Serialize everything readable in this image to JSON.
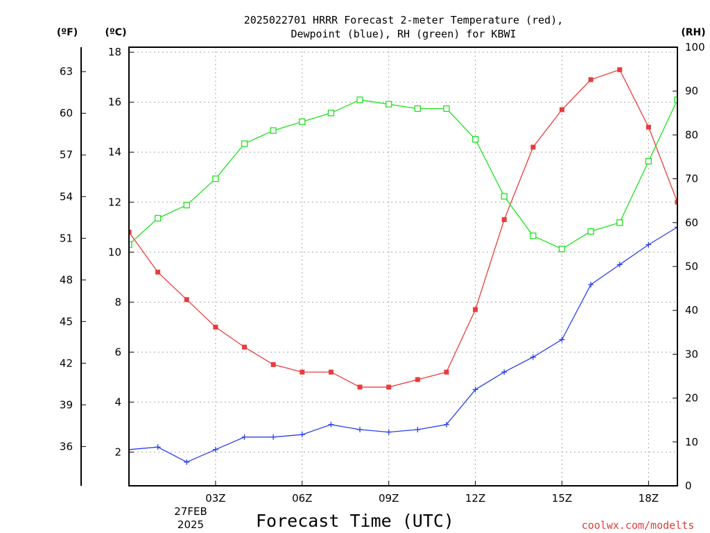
{
  "chart_data": {
    "type": "line",
    "title_line1": "2025022701 HRRR Forecast 2-meter Temperature (red),",
    "title_line2": "Dewpoint (blue), RH (green) for KBWI",
    "xlabel": "Forecast Time (UTC)",
    "credit": "coolwx.com/modelts",
    "axis_unit_labels": {
      "fahrenheit": "(ºF)",
      "celsius": "(ºC)",
      "rh": "(RH)"
    },
    "x": [
      "00Z",
      "01Z",
      "02Z",
      "03Z",
      "04Z",
      "05Z",
      "06Z",
      "07Z",
      "08Z",
      "09Z",
      "10Z",
      "11Z",
      "12Z",
      "13Z",
      "14Z",
      "15Z",
      "16Z",
      "17Z",
      "18Z",
      "19Z"
    ],
    "x_tick_labels": [
      "03Z",
      "06Z",
      "09Z",
      "12Z",
      "15Z",
      "18Z"
    ],
    "x_date_label": [
      "27FEB",
      "2025"
    ],
    "celsius_ticks": [
      2,
      4,
      6,
      8,
      10,
      12,
      14,
      16,
      18
    ],
    "fahrenheit_ticks": [
      36,
      39,
      42,
      45,
      48,
      51,
      54,
      57,
      60,
      63
    ],
    "rh_ticks": [
      0,
      10,
      20,
      30,
      40,
      50,
      60,
      70,
      80,
      90,
      100
    ],
    "ylim_celsius": [
      0.65,
      18.2
    ],
    "ylim_rh": [
      0,
      100
    ],
    "grid": true,
    "series": [
      {
        "name": "Temperature",
        "axis": "celsius",
        "color": "#e83c3c",
        "marker": "filled-square",
        "values": [
          10.8,
          9.2,
          8.1,
          7.0,
          6.2,
          5.5,
          5.2,
          5.2,
          4.6,
          4.6,
          4.9,
          5.2,
          7.7,
          11.3,
          14.2,
          15.7,
          16.9,
          17.3,
          15.0,
          12.0
        ]
      },
      {
        "name": "Dewpoint",
        "axis": "celsius",
        "color": "#2a3fe8",
        "marker": "plus",
        "values": [
          2.1,
          2.2,
          1.6,
          2.1,
          2.6,
          2.6,
          2.7,
          3.1,
          2.9,
          2.8,
          2.9,
          3.1,
          4.5,
          5.2,
          5.8,
          6.5,
          8.7,
          9.5,
          10.3,
          11.0
        ]
      },
      {
        "name": "RH",
        "axis": "rh",
        "color": "#1fe01f",
        "marker": "open-square",
        "values": [
          55,
          61,
          64,
          70,
          78,
          81,
          83,
          85,
          88,
          87,
          86,
          86,
          79,
          66,
          57,
          54,
          58,
          60,
          74,
          88
        ]
      }
    ]
  }
}
